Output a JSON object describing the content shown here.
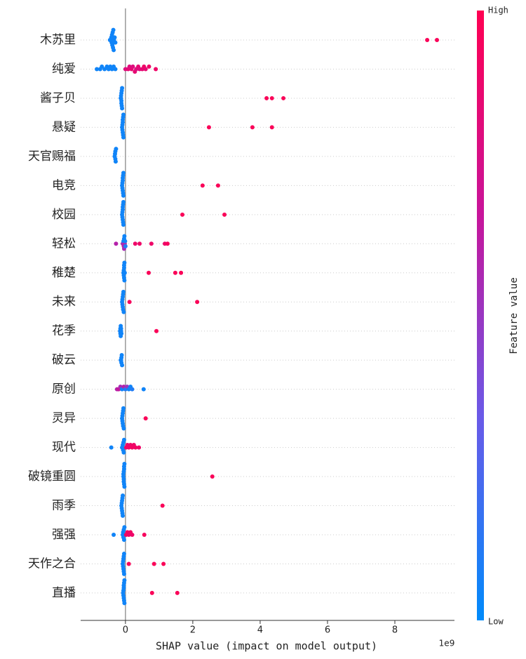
{
  "chart_data": {
    "type": "beeswarm",
    "x_label": "SHAP value (impact on model output)",
    "offset_label": "1e9",
    "colorbar_label": "Feature value",
    "colorbar_high": "High",
    "colorbar_low": "Low",
    "colormap": [
      "#008bfb",
      "#6a5ae8",
      "#c8149a",
      "#ff0052"
    ],
    "xlim": [
      -1.33,
      9.77
    ],
    "xticks": [
      0,
      2,
      4,
      6,
      8
    ],
    "grid": true,
    "features": [
      {
        "name": "木苏里",
        "shap": [
          -0.46,
          -0.44,
          -0.42,
          -0.41,
          -0.4,
          -0.39,
          -0.38,
          -0.37,
          -0.36,
          -0.35,
          -0.34,
          -0.32,
          -0.3,
          8.96,
          9.25
        ],
        "feature_value": [
          0.05,
          0.05,
          0.05,
          0.05,
          0.05,
          0.05,
          0.05,
          0.05,
          0.05,
          0.05,
          0.05,
          0.05,
          0.05,
          0.97,
          0.97
        ]
      },
      {
        "name": "纯爱",
        "shap": [
          -0.85,
          -0.75,
          -0.7,
          -0.62,
          -0.55,
          -0.5,
          -0.45,
          -0.4,
          -0.35,
          -0.3,
          0.0,
          0.08,
          0.12,
          0.18,
          0.22,
          0.28,
          0.32,
          0.38,
          0.42,
          0.5,
          0.55,
          0.6,
          0.7,
          0.9
        ],
        "feature_value": [
          0.05,
          0.05,
          0.05,
          0.05,
          0.05,
          0.05,
          0.05,
          0.05,
          0.05,
          0.05,
          0.8,
          0.85,
          0.8,
          0.85,
          0.8,
          0.85,
          0.8,
          0.85,
          0.8,
          0.85,
          0.9,
          0.85,
          0.9,
          0.9
        ]
      },
      {
        "name": "酱子贝",
        "shap": [
          -0.14,
          -0.13,
          -0.13,
          -0.12,
          -0.12,
          -0.12,
          -0.11,
          -0.11,
          -0.1,
          -0.1,
          4.19,
          4.35,
          4.69
        ],
        "feature_value": [
          0.05,
          0.05,
          0.05,
          0.05,
          0.05,
          0.05,
          0.05,
          0.05,
          0.05,
          0.05,
          0.97,
          0.97,
          0.97
        ]
      },
      {
        "name": "悬疑",
        "shap": [
          -0.1,
          -0.09,
          -0.09,
          -0.08,
          -0.08,
          -0.08,
          -0.07,
          -0.07,
          -0.06,
          -0.06,
          2.48,
          3.77,
          4.35
        ],
        "feature_value": [
          0.05,
          0.05,
          0.05,
          0.05,
          0.05,
          0.05,
          0.05,
          0.05,
          0.05,
          0.05,
          0.97,
          0.97,
          0.97
        ]
      },
      {
        "name": "天官赐福",
        "shap": [
          -0.32,
          -0.31,
          -0.3,
          -0.3,
          -0.29,
          -0.28
        ],
        "feature_value": [
          0.05,
          0.05,
          0.05,
          0.05,
          0.05,
          0.05
        ]
      },
      {
        "name": "电竞",
        "shap": [
          -0.1,
          -0.09,
          -0.09,
          -0.08,
          -0.08,
          -0.08,
          -0.07,
          -0.07,
          -0.06,
          -0.06,
          2.29,
          2.75
        ],
        "feature_value": [
          0.05,
          0.05,
          0.05,
          0.05,
          0.05,
          0.05,
          0.05,
          0.05,
          0.05,
          0.05,
          0.97,
          0.97
        ]
      },
      {
        "name": "校园",
        "shap": [
          -0.1,
          -0.09,
          -0.09,
          -0.08,
          -0.08,
          -0.08,
          -0.07,
          -0.07,
          -0.06,
          -0.06,
          1.69,
          2.94
        ],
        "feature_value": [
          0.05,
          0.05,
          0.05,
          0.05,
          0.05,
          0.05,
          0.05,
          0.05,
          0.05,
          0.05,
          0.97,
          0.97
        ]
      },
      {
        "name": "轻松",
        "shap": [
          -0.28,
          -0.08,
          -0.06,
          -0.05,
          -0.04,
          -0.04,
          -0.03,
          -0.02,
          -0.01,
          0.0,
          0.29,
          0.42,
          0.77,
          1.17,
          1.25
        ],
        "feature_value": [
          0.6,
          0.55,
          0.05,
          0.6,
          0.05,
          0.55,
          0.05,
          0.6,
          0.05,
          0.1,
          0.9,
          0.9,
          0.9,
          0.9,
          0.95
        ]
      },
      {
        "name": "稚楚",
        "shap": [
          -0.06,
          -0.05,
          -0.05,
          -0.04,
          -0.04,
          -0.04,
          -0.03,
          -0.03,
          -0.02,
          0.69,
          1.48,
          1.65
        ],
        "feature_value": [
          0.05,
          0.05,
          0.05,
          0.05,
          0.05,
          0.05,
          0.05,
          0.05,
          0.05,
          0.97,
          0.97,
          0.97
        ]
      },
      {
        "name": "未来",
        "shap": [
          -0.1,
          -0.09,
          -0.09,
          -0.08,
          -0.08,
          -0.07,
          -0.07,
          -0.06,
          -0.05,
          0.12,
          2.13
        ],
        "feature_value": [
          0.05,
          0.05,
          0.05,
          0.05,
          0.05,
          0.05,
          0.05,
          0.05,
          0.05,
          0.95,
          0.97
        ]
      },
      {
        "name": "花季",
        "shap": [
          -0.16,
          -0.15,
          -0.15,
          -0.14,
          -0.14,
          -0.13,
          -0.13,
          -0.12,
          0.92
        ],
        "feature_value": [
          0.05,
          0.05,
          0.05,
          0.05,
          0.05,
          0.05,
          0.05,
          0.05,
          0.97
        ]
      },
      {
        "name": "破云",
        "shap": [
          -0.14,
          -0.13,
          -0.12,
          -0.12,
          -0.11,
          -0.1
        ],
        "feature_value": [
          0.05,
          0.05,
          0.05,
          0.05,
          0.05,
          0.05
        ]
      },
      {
        "name": "原创",
        "shap": [
          -0.25,
          -0.2,
          -0.15,
          -0.1,
          -0.05,
          0.0,
          0.05,
          0.1,
          0.15,
          0.2,
          0.54
        ],
        "feature_value": [
          0.6,
          0.65,
          0.55,
          0.05,
          0.6,
          0.1,
          0.5,
          0.05,
          0.05,
          0.1,
          0.05
        ]
      },
      {
        "name": "灵异",
        "shap": [
          -0.1,
          -0.09,
          -0.09,
          -0.08,
          -0.08,
          -0.07,
          -0.07,
          -0.06,
          -0.05,
          0.6
        ],
        "feature_value": [
          0.05,
          0.05,
          0.05,
          0.05,
          0.05,
          0.05,
          0.05,
          0.05,
          0.05,
          0.97
        ]
      },
      {
        "name": "现代",
        "shap": [
          -0.42,
          -0.1,
          -0.08,
          -0.07,
          -0.06,
          -0.05,
          -0.04,
          0.02,
          0.06,
          0.1,
          0.15,
          0.2,
          0.25,
          0.3,
          0.4
        ],
        "feature_value": [
          0.05,
          0.05,
          0.05,
          0.05,
          0.05,
          0.05,
          0.05,
          0.9,
          0.9,
          0.92,
          0.9,
          0.92,
          0.9,
          0.92,
          0.9
        ]
      },
      {
        "name": "破镜重圆",
        "shap": [
          -0.06,
          -0.06,
          -0.05,
          -0.05,
          -0.05,
          -0.04,
          -0.04,
          -0.04,
          -0.03,
          -0.03,
          2.58
        ],
        "feature_value": [
          0.05,
          0.05,
          0.05,
          0.05,
          0.05,
          0.05,
          0.05,
          0.05,
          0.05,
          0.05,
          0.97
        ]
      },
      {
        "name": "雨季",
        "shap": [
          -0.12,
          -0.11,
          -0.11,
          -0.1,
          -0.1,
          -0.09,
          -0.09,
          -0.08,
          -0.08,
          1.1
        ],
        "feature_value": [
          0.05,
          0.05,
          0.05,
          0.05,
          0.05,
          0.05,
          0.05,
          0.05,
          0.05,
          0.97
        ]
      },
      {
        "name": "强强",
        "shap": [
          -0.35,
          -0.08,
          -0.07,
          -0.06,
          -0.05,
          -0.04,
          -0.03,
          0.02,
          0.06,
          0.1,
          0.15,
          0.2,
          0.56
        ],
        "feature_value": [
          0.05,
          0.05,
          0.05,
          0.05,
          0.05,
          0.05,
          0.05,
          0.9,
          0.92,
          0.9,
          0.92,
          0.9,
          0.95
        ]
      },
      {
        "name": "天作之合",
        "shap": [
          -0.08,
          -0.07,
          -0.07,
          -0.06,
          -0.06,
          -0.05,
          -0.05,
          -0.04,
          -0.04,
          0.1,
          0.85,
          1.13
        ],
        "feature_value": [
          0.05,
          0.05,
          0.05,
          0.05,
          0.05,
          0.05,
          0.05,
          0.05,
          0.05,
          0.97,
          0.97,
          0.97
        ]
      },
      {
        "name": "直播",
        "shap": [
          -0.07,
          -0.06,
          -0.06,
          -0.05,
          -0.05,
          -0.05,
          -0.04,
          -0.04,
          -0.03,
          -0.03,
          0.79,
          1.54
        ],
        "feature_value": [
          0.05,
          0.05,
          0.05,
          0.05,
          0.05,
          0.05,
          0.05,
          0.05,
          0.05,
          0.05,
          0.97,
          0.97
        ]
      }
    ]
  }
}
